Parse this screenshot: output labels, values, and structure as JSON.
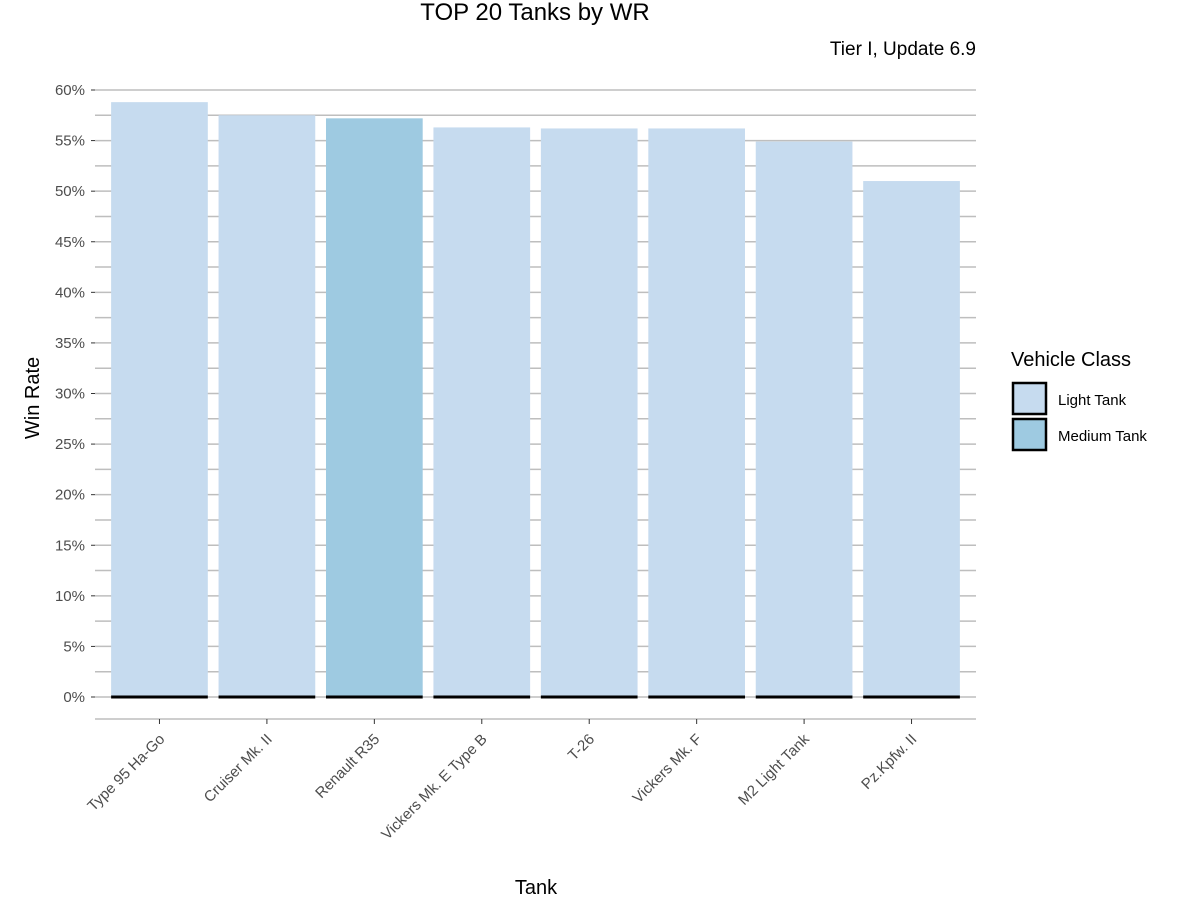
{
  "chart_data": {
    "type": "bar",
    "title": "TOP 20 Tanks by WR",
    "subtitle": "Tier I, Update 6.9",
    "xlabel": "Tank",
    "ylabel": "Win Rate",
    "categories": [
      "Type 95 Ha-Go",
      "Cruiser Mk. II",
      "Renault R35",
      "Vickers Mk. E Type B",
      "T-26",
      "Vickers Mk. F",
      "M2 Light Tank",
      "Pz.Kpfw. II"
    ],
    "values": [
      58.8,
      57.5,
      57.2,
      56.3,
      56.2,
      56.2,
      54.9,
      51.0
    ],
    "classes": [
      "Light Tank",
      "Light Tank",
      "Medium Tank",
      "Light Tank",
      "Light Tank",
      "Light Tank",
      "Light Tank",
      "Light Tank"
    ],
    "ylim": [
      0,
      60
    ],
    "yticks": [
      0,
      5,
      10,
      15,
      20,
      25,
      30,
      35,
      40,
      45,
      50,
      55,
      60
    ],
    "ytick_labels": [
      "0%",
      "5%",
      "10%",
      "15%",
      "20%",
      "25%",
      "30%",
      "35%",
      "40%",
      "45%",
      "50%",
      "55%",
      "60%"
    ],
    "grid": true,
    "legend": {
      "title": "Vehicle Class",
      "position": "right",
      "entries": [
        {
          "label": "Light Tank",
          "color": "#c6dbef"
        },
        {
          "label": "Medium Tank",
          "color": "#9ecae1"
        }
      ]
    },
    "colors": {
      "Light Tank": "#c6dbef",
      "Medium Tank": "#9ecae1",
      "grid": "#bebebe",
      "baseline": "#000000"
    }
  }
}
